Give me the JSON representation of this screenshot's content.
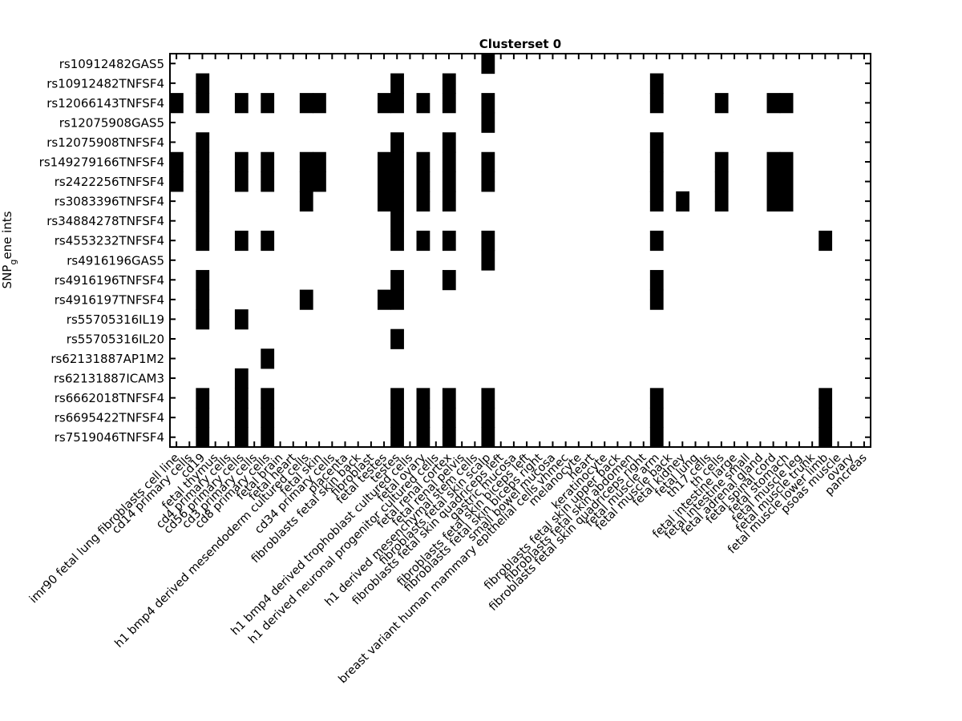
{
  "chart_data": {
    "type": "heatmap",
    "title": "Clusterset 0",
    "xlabel": "",
    "ylabel": "SNP_gene ints",
    "ylabel_main": "SNP",
    "ylabel_sub": "g",
    "ylabel_rest": "ene ints",
    "cell_color": "#000000",
    "background_color": "#ffffff",
    "rows": [
      "rs10912482GAS5",
      "rs10912482TNFSF4",
      "rs12066143TNFSF4",
      "rs12075908GAS5",
      "rs12075908TNFSF4",
      "rs149279166TNFSF4",
      "rs2422256TNFSF4",
      "rs3083396TNFSF4",
      "rs34884278TNFSF4",
      "rs4553232TNFSF4",
      "rs4916196GAS5",
      "rs4916196TNFSF4",
      "rs4916197TNFSF4",
      "rs55705316IL19",
      "rs55705316IL20",
      "rs62131887AP1M2",
      "rs62131887ICAM3",
      "rs6662018TNFSF4",
      "rs6695422TNFSF4",
      "rs7519046TNFSF4"
    ],
    "columns": [
      "imr90 fetal lung fibroblasts cell line",
      "cd14 primary cells",
      "cd19",
      "fetal thymus",
      "cd4 primary cells",
      "cd56 primary cells",
      "cd3 primary cells",
      "cd8 primary cells",
      "fetal brain",
      "fetal heart",
      "h1 bmp4 derived mesendoderm cultured cells",
      "fetal skin",
      "cd34 primary cells",
      "placenta",
      "fibroblasts fetal skin back",
      "fibroblast",
      "fetal testes",
      "testes",
      "h1 bmp4 derived trophoblast cultured cells",
      "fetal ovary",
      "h1 derived neuronal progenitor cultured cells",
      "fetal renal cortex",
      "fetal renal pelvis",
      "h1 derived mesenchymal stem cells",
      "fibroblasts fetal skin scalp",
      "fibroblasts fetal skin quadriceps left",
      "gastric mucosa",
      "fibroblasts fetal skin biceps left",
      "fibroblasts fetal skin biceps right",
      "small bowel mucosa",
      "breast variant human mammary epithelial cells vhmec",
      "melanocyte",
      "heart",
      "keratinocyte",
      "fibroblasts fetal skin upper back",
      "fibroblasts fetal skin abdomen",
      "fibroblasts fetal skin quadriceps right",
      "fetal muscle arm",
      "fetal muscle back",
      "fetal kidney",
      "fetal lung",
      "th17 cells",
      "th cells",
      "fetal intestine large",
      "fetal intestine small",
      "fetal adrenal gland",
      "fetal spinal cord",
      "fetal stomach",
      "fetal muscle leg",
      "fetal muscle trunk",
      "fetal muscle lower limb",
      "psoas muscle",
      "ovary",
      "pancreas"
    ],
    "cells": [
      {
        "row": 0,
        "cols": [
          24
        ]
      },
      {
        "row": 1,
        "cols": [
          2,
          17,
          21,
          37
        ]
      },
      {
        "row": 2,
        "cols": [
          0,
          2,
          5,
          7,
          10,
          11,
          16,
          17,
          19,
          21,
          24,
          37,
          42,
          46,
          47
        ]
      },
      {
        "row": 3,
        "cols": [
          24
        ]
      },
      {
        "row": 4,
        "cols": [
          2,
          17,
          21,
          37
        ]
      },
      {
        "row": 5,
        "cols": [
          0,
          2,
          5,
          7,
          10,
          11,
          16,
          17,
          19,
          21,
          24,
          37,
          42,
          46,
          47
        ]
      },
      {
        "row": 6,
        "cols": [
          0,
          2,
          5,
          7,
          10,
          11,
          16,
          17,
          19,
          21,
          24,
          37,
          42,
          46,
          47
        ]
      },
      {
        "row": 7,
        "cols": [
          2,
          10,
          16,
          17,
          19,
          21,
          37,
          39,
          42,
          46,
          47
        ]
      },
      {
        "row": 8,
        "cols": [
          2,
          17
        ]
      },
      {
        "row": 9,
        "cols": [
          2,
          5,
          7,
          17,
          19,
          21,
          24,
          37,
          50
        ]
      },
      {
        "row": 10,
        "cols": [
          24
        ]
      },
      {
        "row": 11,
        "cols": [
          2,
          17,
          21,
          37
        ]
      },
      {
        "row": 12,
        "cols": [
          2,
          10,
          16,
          17,
          37
        ]
      },
      {
        "row": 13,
        "cols": [
          2,
          5
        ]
      },
      {
        "row": 14,
        "cols": [
          17
        ]
      },
      {
        "row": 15,
        "cols": [
          7
        ]
      },
      {
        "row": 16,
        "cols": [
          5
        ]
      },
      {
        "row": 17,
        "cols": [
          2,
          5,
          7,
          17,
          19,
          21,
          24,
          37,
          50
        ]
      },
      {
        "row": 18,
        "cols": [
          2,
          5,
          7,
          17,
          19,
          21,
          24,
          37,
          50
        ]
      },
      {
        "row": 19,
        "cols": [
          2,
          5,
          7,
          17,
          19,
          21,
          24,
          37,
          50
        ]
      }
    ],
    "grid": false,
    "legend": "none"
  }
}
